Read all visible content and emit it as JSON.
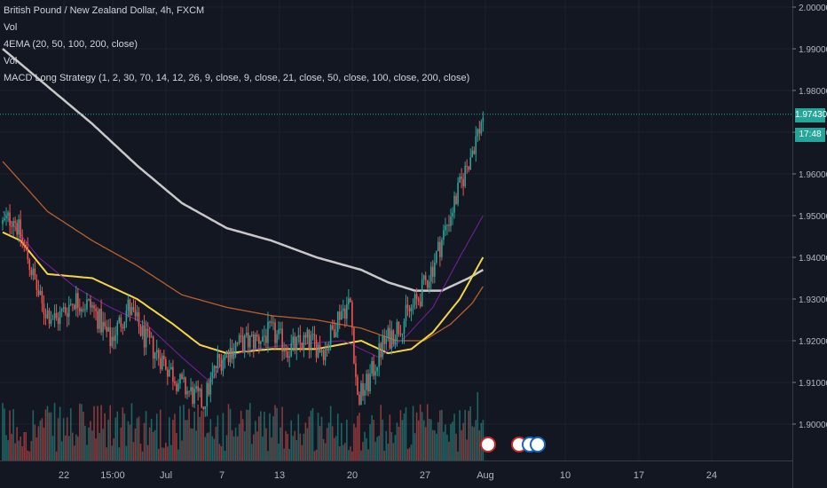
{
  "legend": {
    "title": "British Pound / New Zealand Dollar, 4h, FXCM",
    "vol1": "Vol",
    "ema": "4EMA (20, 50, 100, 200, close)",
    "vol2": "Vol",
    "macd": "MACD Long Strategy (1, 2, 30, 70, 14, 12, 26, 9, close, 9, close, 21, close, 50, close, 100, close, 200, close)"
  },
  "last_price": "1.97430",
  "countdown": "17:48",
  "colors": {
    "background": "#131722",
    "up": "#26a69a",
    "down": "#ef5350",
    "ema20": "#7b1fa2",
    "ema50": "#f5d547",
    "ema100": "#b8602a",
    "ema200": "#c8c8c8",
    "price_line": "#26a69a"
  },
  "chart_data": {
    "type": "candlestick",
    "symbol": "GBPNZD",
    "timeframe": "4h",
    "ylim": [
      1.895,
      2.0
    ],
    "y_ticks": [
      "2.00000",
      "1.99000",
      "1.98000",
      "1.97000",
      "1.96000",
      "1.95000",
      "1.94000",
      "1.93000",
      "1.92000",
      "1.91000",
      "1.90000"
    ],
    "x_ticks": [
      "22",
      "15:00",
      "Jul",
      "7",
      "13",
      "20",
      "27",
      "Aug",
      "10",
      "17",
      "24"
    ],
    "close_anchors": [
      [
        0,
        1.948
      ],
      [
        6,
        1.95
      ],
      [
        14,
        1.94
      ],
      [
        22,
        1.928
      ],
      [
        30,
        1.925
      ],
      [
        40,
        1.93
      ],
      [
        50,
        1.928
      ],
      [
        60,
        1.92
      ],
      [
        70,
        1.928
      ],
      [
        80,
        1.92
      ],
      [
        90,
        1.915
      ],
      [
        100,
        1.909
      ],
      [
        112,
        1.905
      ],
      [
        120,
        1.915
      ],
      [
        130,
        1.919
      ],
      [
        140,
        1.92
      ],
      [
        150,
        1.922
      ],
      [
        160,
        1.918
      ],
      [
        170,
        1.92
      ],
      [
        180,
        1.918
      ],
      [
        188,
        1.927
      ],
      [
        194,
        1.929
      ],
      [
        198,
        1.906
      ],
      [
        204,
        1.91
      ],
      [
        212,
        1.919
      ],
      [
        222,
        1.924
      ],
      [
        232,
        1.93
      ],
      [
        240,
        1.938
      ],
      [
        248,
        1.948
      ],
      [
        256,
        1.958
      ],
      [
        262,
        1.966
      ],
      [
        266,
        1.971
      ],
      [
        268,
        1.9743
      ]
    ],
    "ema_anchors": {
      "ema20": [
        [
          0,
          1.951
        ],
        [
          20,
          1.94
        ],
        [
          40,
          1.933
        ],
        [
          60,
          1.928
        ],
        [
          80,
          1.924
        ],
        [
          100,
          1.916
        ],
        [
          116,
          1.91
        ],
        [
          124,
          1.916
        ],
        [
          140,
          1.918
        ],
        [
          160,
          1.919
        ],
        [
          190,
          1.92
        ],
        [
          210,
          1.916
        ],
        [
          225,
          1.921
        ],
        [
          240,
          1.928
        ],
        [
          255,
          1.94
        ],
        [
          268,
          1.95
        ]
      ],
      "ema50": [
        [
          0,
          1.946
        ],
        [
          10,
          1.944
        ],
        [
          25,
          1.936
        ],
        [
          50,
          1.935
        ],
        [
          75,
          1.93
        ],
        [
          95,
          1.924
        ],
        [
          110,
          1.919
        ],
        [
          125,
          1.917
        ],
        [
          150,
          1.918
        ],
        [
          175,
          1.918
        ],
        [
          200,
          1.92
        ],
        [
          215,
          1.917
        ],
        [
          228,
          1.918
        ],
        [
          240,
          1.922
        ],
        [
          255,
          1.93
        ],
        [
          268,
          1.94
        ]
      ],
      "ema100": [
        [
          0,
          1.963
        ],
        [
          25,
          1.951
        ],
        [
          50,
          1.944
        ],
        [
          75,
          1.938
        ],
        [
          100,
          1.931
        ],
        [
          125,
          1.928
        ],
        [
          150,
          1.926
        ],
        [
          175,
          1.925
        ],
        [
          200,
          1.923
        ],
        [
          220,
          1.92
        ],
        [
          235,
          1.92
        ],
        [
          250,
          1.924
        ],
        [
          262,
          1.929
        ],
        [
          268,
          1.933
        ]
      ],
      "ema200": [
        [
          0,
          1.99
        ],
        [
          25,
          1.981
        ],
        [
          50,
          1.972
        ],
        [
          75,
          1.962
        ],
        [
          100,
          1.953
        ],
        [
          125,
          1.947
        ],
        [
          150,
          1.944
        ],
        [
          175,
          1.94
        ],
        [
          200,
          1.937
        ],
        [
          215,
          1.934
        ],
        [
          230,
          1.932
        ],
        [
          245,
          1.932
        ],
        [
          260,
          1.935
        ],
        [
          268,
          1.937
        ]
      ]
    }
  }
}
